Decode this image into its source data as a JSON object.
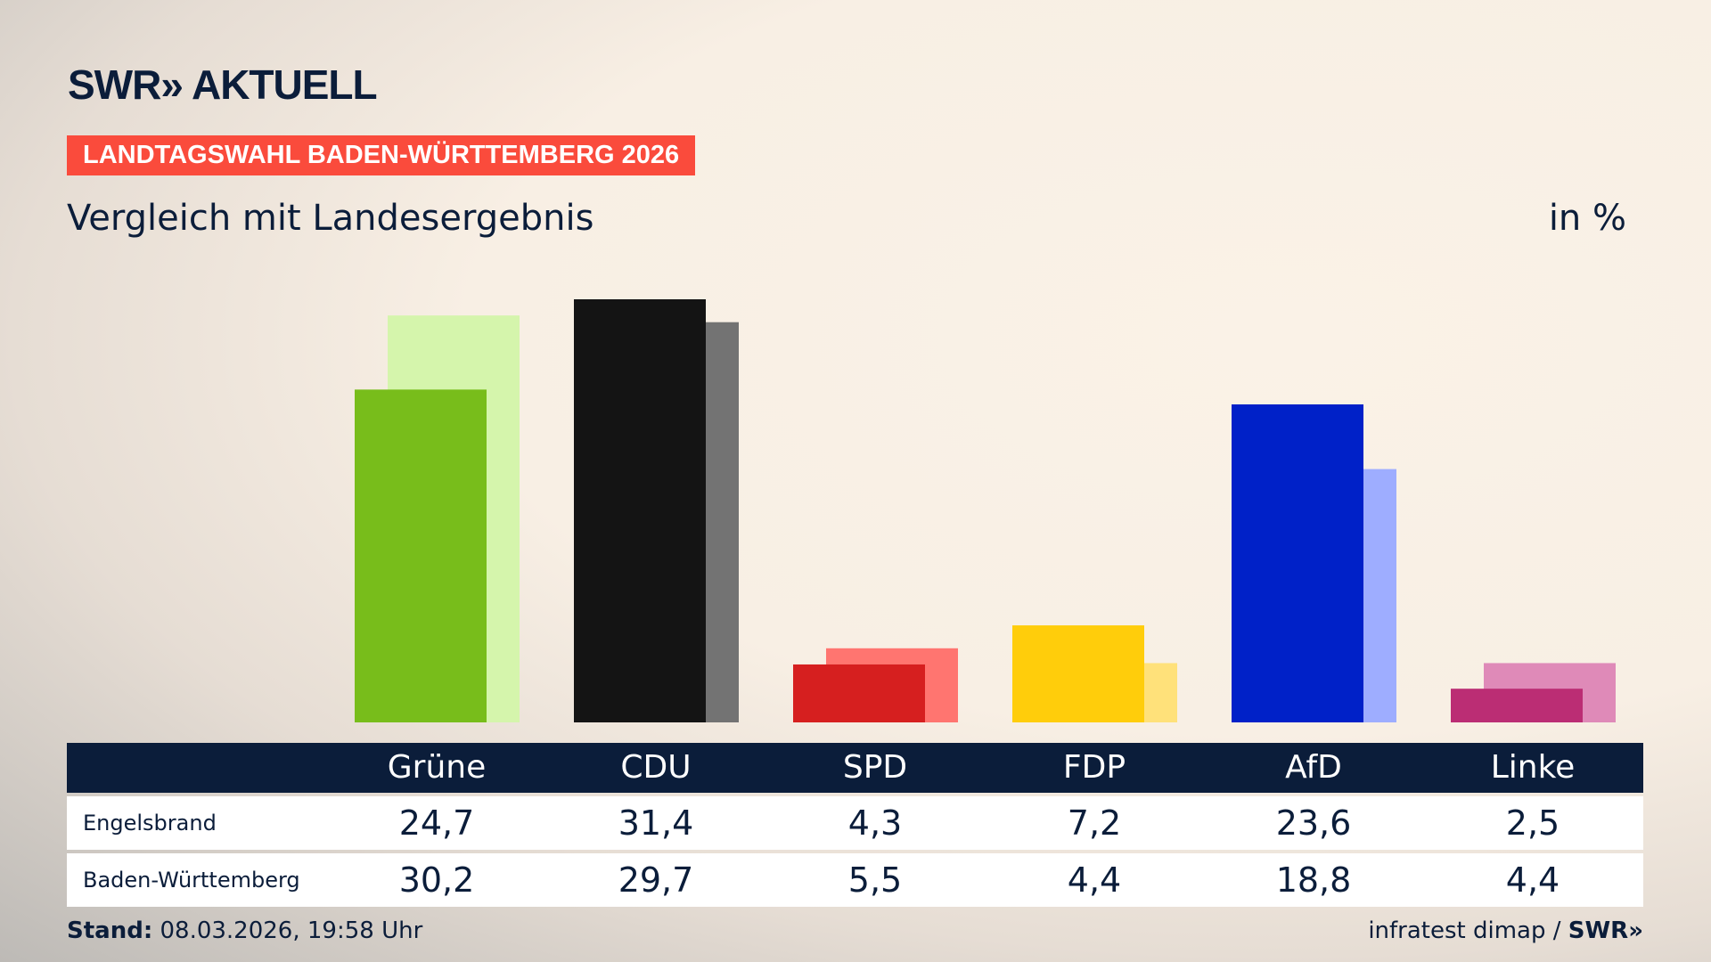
{
  "header": {
    "logo": "SWR» AKTUELL",
    "banner": "LANDTAGSWAHL BADEN-WÜRTTEMBERG 2026",
    "subtitle": "Vergleich mit Landesergebnis",
    "unit": "in %"
  },
  "chart_data": {
    "type": "bar",
    "categories": [
      "Grüne",
      "CDU",
      "SPD",
      "FDP",
      "AfD",
      "Linke"
    ],
    "series": [
      {
        "name": "Engelsbrand",
        "values": [
          24.7,
          31.4,
          4.3,
          7.2,
          23.6,
          2.5
        ],
        "colors": [
          "#78bd1b",
          "#141414",
          "#d61f1f",
          "#ffcd0b",
          "#0021c8",
          "#bb2d74"
        ]
      },
      {
        "name": "Baden-Württemberg",
        "values": [
          30.2,
          29.7,
          5.5,
          4.4,
          18.8,
          4.4
        ],
        "colors": [
          "#d5f5ac",
          "#737373",
          "#ff7570",
          "#ffe17a",
          "#9eadff",
          "#df8ab8"
        ]
      }
    ],
    "ylim": [
      0,
      31.4
    ]
  },
  "table": {
    "headers": [
      "Grüne",
      "CDU",
      "SPD",
      "FDP",
      "AfD",
      "Linke"
    ],
    "rows": [
      {
        "label": "Engelsbrand",
        "values": [
          "24,7",
          "31,4",
          "4,3",
          "7,2",
          "23,6",
          "2,5"
        ]
      },
      {
        "label": "Baden-Württemberg",
        "values": [
          "30,2",
          "29,7",
          "5,5",
          "4,4",
          "18,8",
          "4,4"
        ]
      }
    ]
  },
  "footer": {
    "stand_label": "Stand:",
    "stand_value": " 08.03.2026, 19:58 Uhr",
    "source": "infratest dimap / ",
    "source_logo": "SWR»"
  }
}
